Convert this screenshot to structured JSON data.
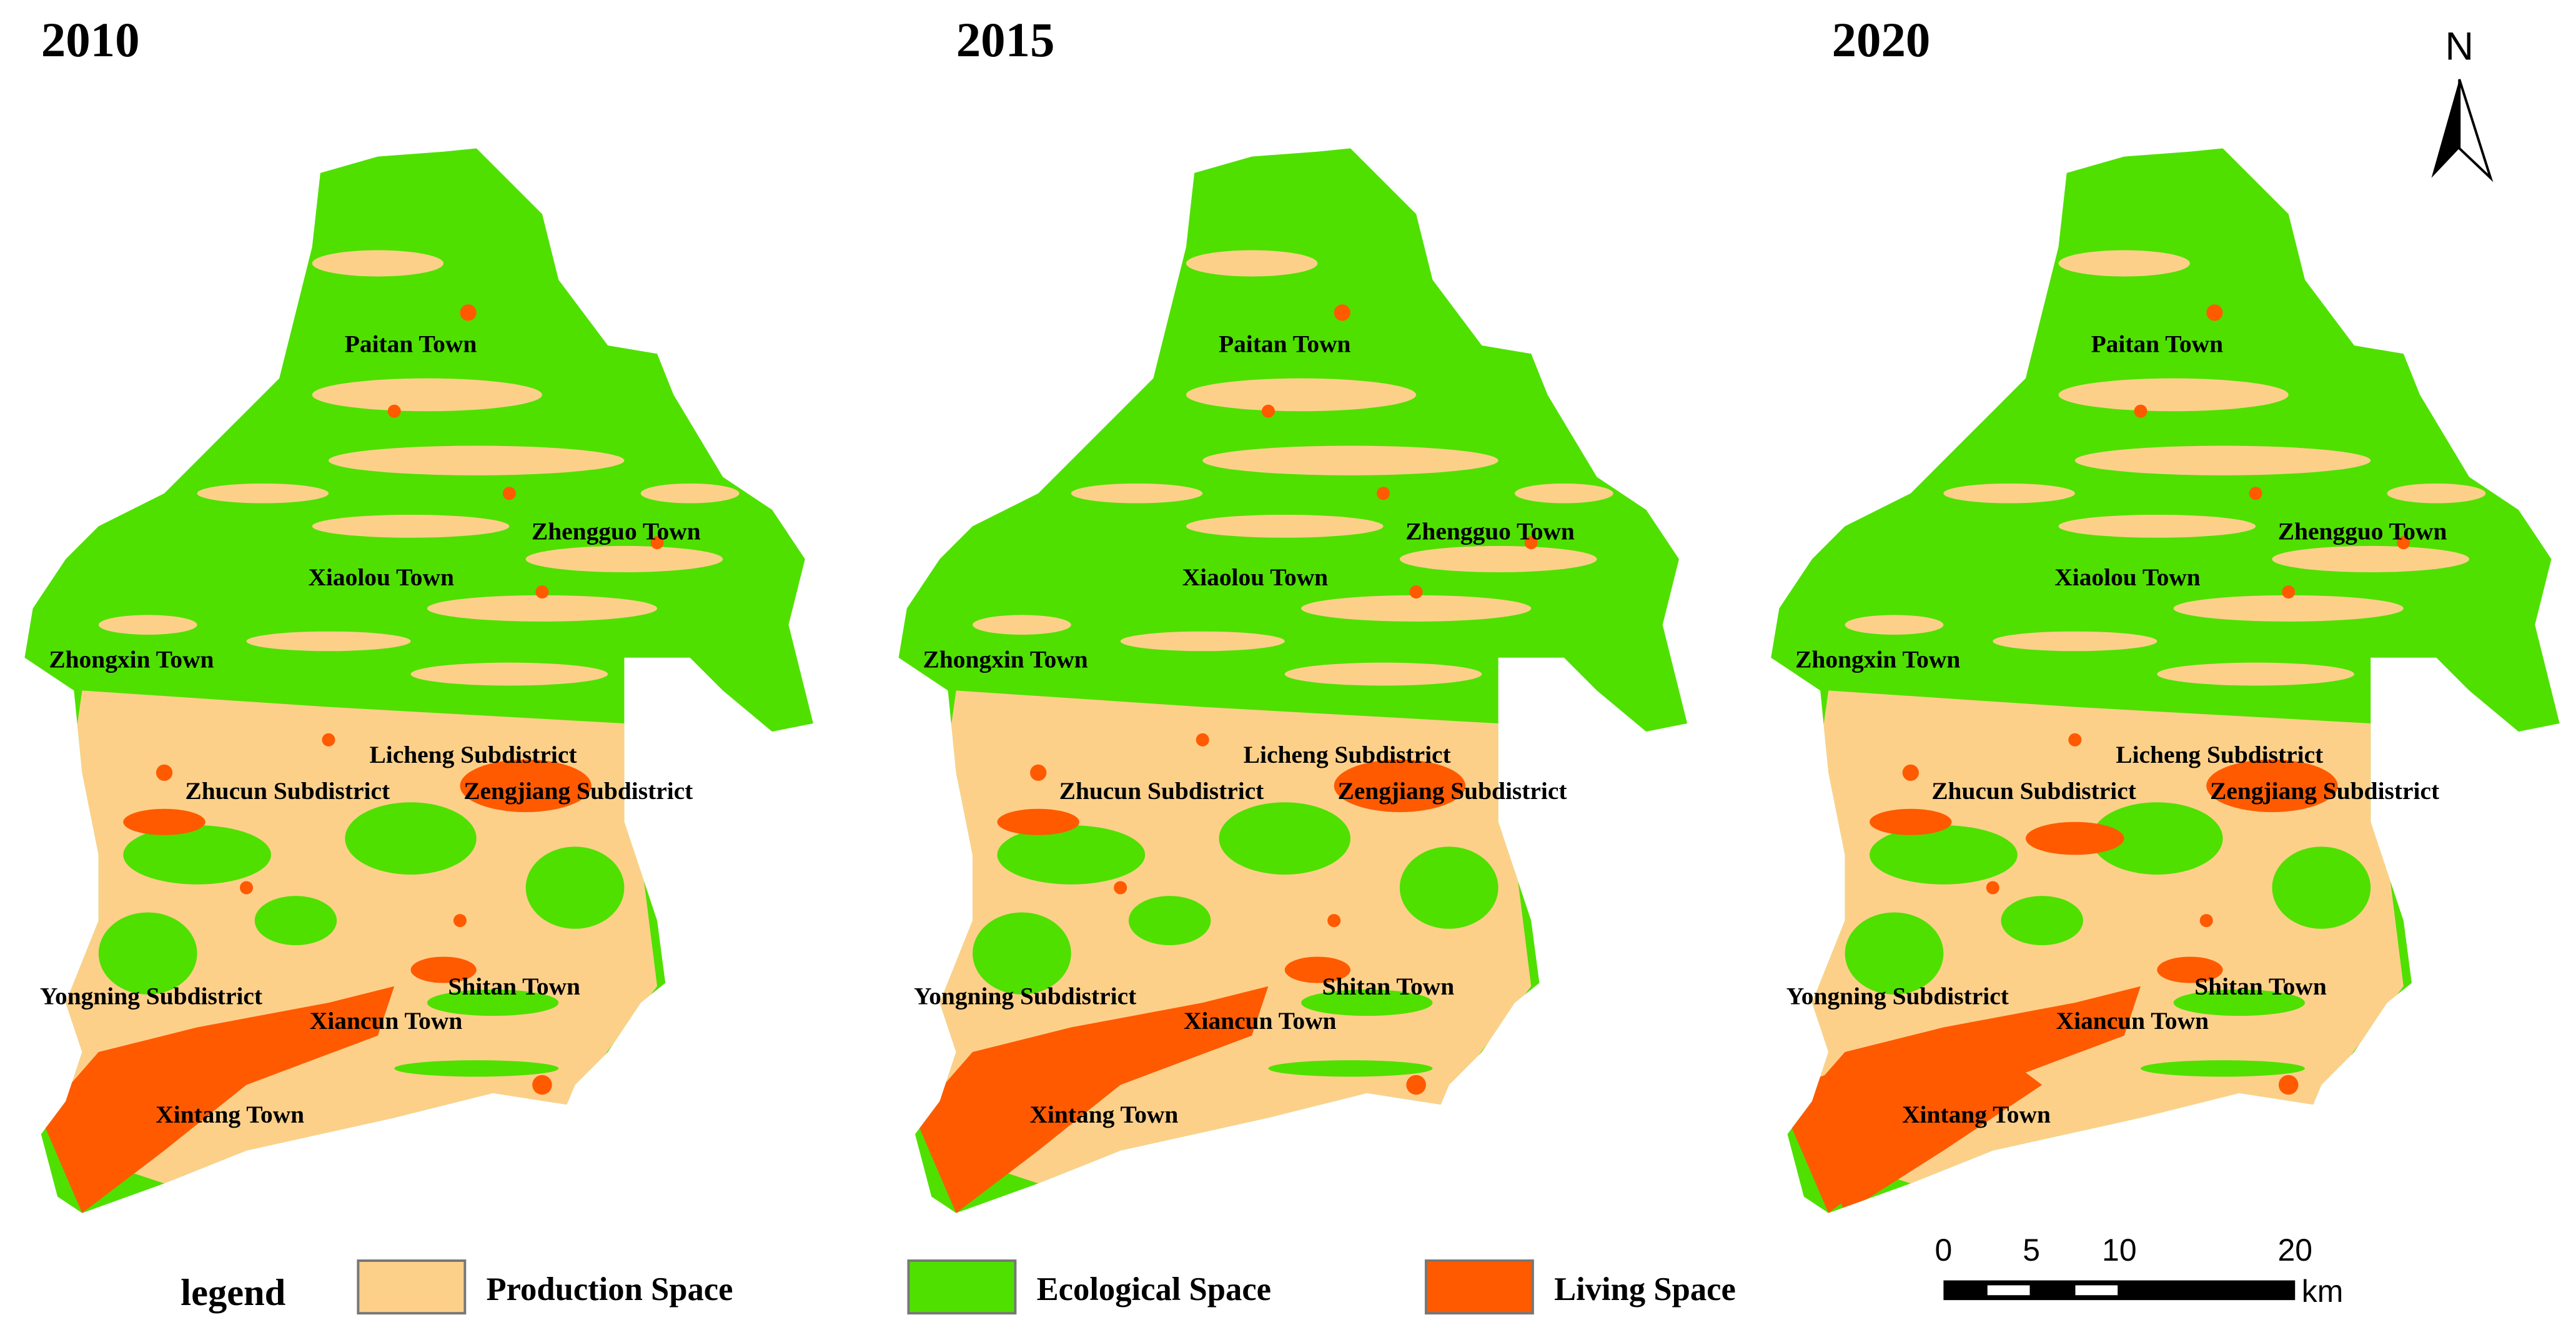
{
  "maps": [
    {
      "year": "2010",
      "labels": [
        "Paitan Town",
        "Zhengguo Town",
        "Xiaolou Town",
        "Zhongxin Town",
        "Licheng Subdistrict",
        "Zhucun Subdistrict",
        "Zengjiang Subdistrict",
        "Yongning Subdistrict",
        "Shitan Town",
        "Xiancun Town",
        "Xintang Town"
      ]
    },
    {
      "year": "2015",
      "labels": [
        "Paitan Town",
        "Zhengguo Town",
        "Xiaolou Town",
        "Zhongxin Town",
        "Licheng Subdistrict",
        "Zhucun Subdistrict",
        "Zengjiang Subdistrict",
        "Yongning Subdistrict",
        "Shitan Town",
        "Xiancun Town",
        "Xintang Town"
      ]
    },
    {
      "year": "2020",
      "labels": [
        "Paitan Town",
        "Zhengguo Town",
        "Xiaolou Town",
        "Zhongxin Town",
        "Licheng Subdistrict",
        "Zhucun Subdistrict",
        "Zengjiang Subdistrict",
        "Yongning Subdistrict",
        "Shitan Town",
        "Xiancun Town",
        "Xintang Town"
      ]
    }
  ],
  "north": "N",
  "legend": {
    "title": "legend",
    "items": [
      {
        "name": "Production Space",
        "color": "#fdd08a"
      },
      {
        "name": "Ecological Space",
        "color": "#4fe000"
      },
      {
        "name": "Living Space",
        "color": "#ff5a00"
      }
    ]
  },
  "scale_bar": {
    "ticks": [
      0,
      5,
      10,
      20
    ],
    "unit": "km"
  }
}
